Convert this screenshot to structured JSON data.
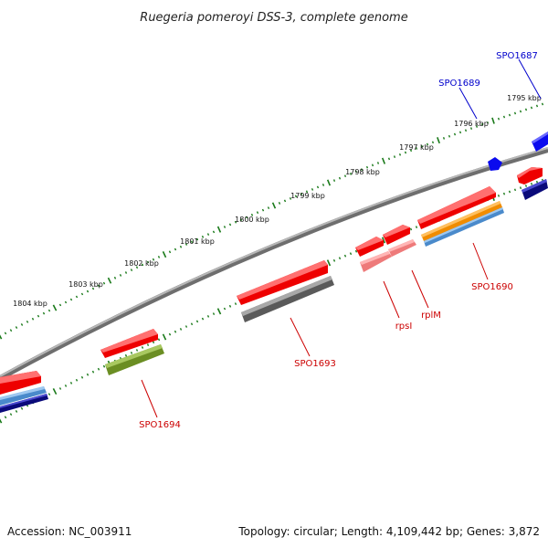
{
  "title": "Ruegeria pomeroyi DSS-3, complete genome",
  "footer": {
    "accession": "Accession: NC_003911",
    "summary": "Topology: circular; Length: 4,109,442 bp; Genes: 3,872"
  },
  "colors": {
    "backbone": "#8a8a8a",
    "tick": "#1a7a1a",
    "label_red": "#cc0000",
    "label_blue": "#0000cc",
    "gene_red": "#ee0000",
    "gene_pink": "#ee7a7a",
    "gene_gray": "#5a5a5a",
    "gene_olive": "#6b8e23",
    "gene_orange": "#f08c00",
    "gene_steel": "#4a8acb",
    "gene_navy": "#0a0a7a",
    "gene_blue": "#0a0aee"
  },
  "ticks": [
    {
      "label": "1795 kbp"
    },
    {
      "label": "1796 kbp"
    },
    {
      "label": "1797 kbp"
    },
    {
      "label": "1798 kbp"
    },
    {
      "label": "1799 kbp"
    },
    {
      "label": "1800 kbp"
    },
    {
      "label": "1801 kbp"
    },
    {
      "label": "1802 kbp"
    },
    {
      "label": "1803 kbp"
    },
    {
      "label": "1804 kbp"
    }
  ],
  "gene_labels": [
    {
      "text": "SPO1687",
      "color": "blue"
    },
    {
      "text": "SPO1689",
      "color": "blue"
    },
    {
      "text": "SPO1690",
      "color": "red"
    },
    {
      "text": "rplM",
      "color": "red"
    },
    {
      "text": "rpsI",
      "color": "red"
    },
    {
      "text": "SPO1693",
      "color": "red"
    },
    {
      "text": "SPO1694",
      "color": "red"
    }
  ]
}
